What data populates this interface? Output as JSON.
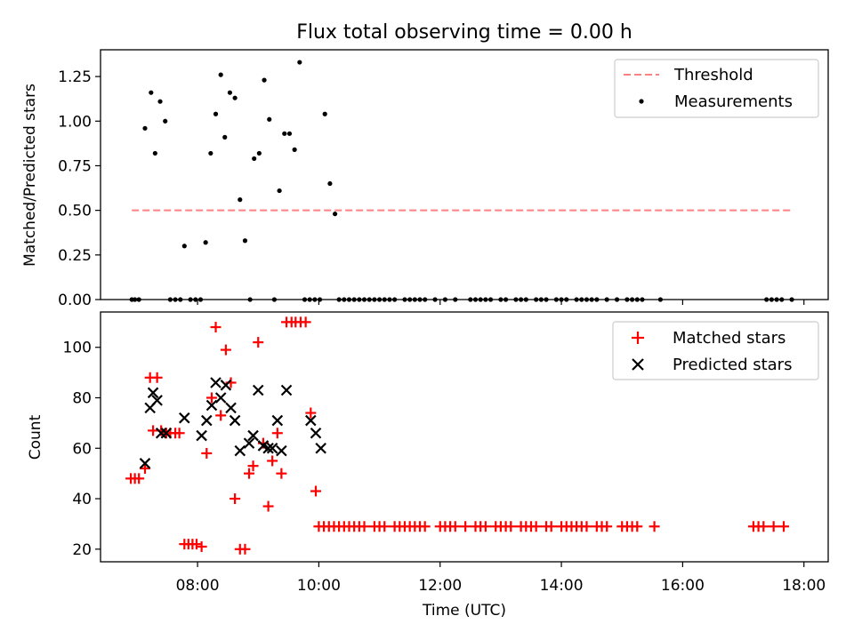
{
  "chart_data": [
    {
      "type": "scatter",
      "title": "Flux total observing time = 0.00 h",
      "xlabel": "",
      "ylabel": "Matched/Predicted stars",
      "xlim": [
        "06:24",
        "18:24"
      ],
      "ylim": [
        0,
        1.4
      ],
      "yticks": [
        0,
        0.25,
        0.5,
        0.75,
        1.0,
        1.25
      ],
      "ytick_labels": [
        "0.00",
        "0.25",
        "0.50",
        "0.75",
        "1.00",
        "1.25"
      ],
      "grid": false,
      "legend": {
        "placement": "top-right",
        "entries": [
          "Threshold",
          "Measurements"
        ]
      },
      "threshold": {
        "name": "Threshold",
        "color": "#ff8080",
        "x_start": "06:55",
        "x_end": "17:50",
        "y": 0.5
      },
      "series": [
        {
          "name": "Measurements",
          "color": "#000000",
          "points": [
            [
              "06:55",
              0
            ],
            [
              "06:58",
              0
            ],
            [
              "07:02",
              0
            ],
            [
              "07:08",
              0.96
            ],
            [
              "07:14",
              1.16
            ],
            [
              "07:18",
              0.82
            ],
            [
              "07:23",
              1.11
            ],
            [
              "07:28",
              1.0
            ],
            [
              "07:33",
              0
            ],
            [
              "07:38",
              0
            ],
            [
              "07:43",
              0
            ],
            [
              "07:47",
              0.3
            ],
            [
              "07:53",
              0
            ],
            [
              "07:58",
              0
            ],
            [
              "08:03",
              0
            ],
            [
              "08:08",
              0.32
            ],
            [
              "08:13",
              0.82
            ],
            [
              "08:18",
              1.04
            ],
            [
              "08:23",
              1.26
            ],
            [
              "08:27",
              0.91
            ],
            [
              "08:32",
              1.16
            ],
            [
              "08:37",
              1.13
            ],
            [
              "08:42",
              0.56
            ],
            [
              "08:47",
              0.33
            ],
            [
              "08:52",
              0
            ],
            [
              "08:56",
              0.79
            ],
            [
              "09:01",
              0.82
            ],
            [
              "09:06",
              1.23
            ],
            [
              "09:11",
              1.01
            ],
            [
              "09:16",
              0
            ],
            [
              "09:21",
              0.61
            ],
            [
              "09:26",
              0.93
            ],
            [
              "09:31",
              0.93
            ],
            [
              "09:36",
              0.84
            ],
            [
              "09:41",
              1.33
            ],
            [
              "09:46",
              0
            ],
            [
              "09:51",
              0
            ],
            [
              "09:56",
              0
            ],
            [
              "10:01",
              0
            ],
            [
              "10:06",
              1.04
            ],
            [
              "10:11",
              0.65
            ],
            [
              "10:16",
              0.48
            ],
            [
              "10:20",
              0
            ],
            [
              "10:25",
              0
            ],
            [
              "10:30",
              0
            ],
            [
              "10:35",
              0
            ],
            [
              "10:40",
              0
            ],
            [
              "10:45",
              0
            ],
            [
              "10:50",
              0
            ],
            [
              "10:55",
              0
            ],
            [
              "11:00",
              0
            ],
            [
              "11:05",
              0
            ],
            [
              "11:10",
              0
            ],
            [
              "11:15",
              0
            ],
            [
              "11:25",
              0
            ],
            [
              "11:30",
              0
            ],
            [
              "11:35",
              0
            ],
            [
              "11:40",
              0
            ],
            [
              "11:45",
              0
            ],
            [
              "11:55",
              0
            ],
            [
              "12:05",
              0
            ],
            [
              "12:15",
              0
            ],
            [
              "12:30",
              0
            ],
            [
              "12:35",
              0
            ],
            [
              "12:40",
              0
            ],
            [
              "12:45",
              0
            ],
            [
              "12:50",
              0
            ],
            [
              "13:00",
              0
            ],
            [
              "13:05",
              0
            ],
            [
              "13:15",
              0
            ],
            [
              "13:20",
              0
            ],
            [
              "13:25",
              0
            ],
            [
              "13:35",
              0
            ],
            [
              "13:40",
              0
            ],
            [
              "13:45",
              0
            ],
            [
              "13:55",
              0
            ],
            [
              "14:00",
              0
            ],
            [
              "14:05",
              0
            ],
            [
              "14:15",
              0
            ],
            [
              "14:20",
              0
            ],
            [
              "14:25",
              0
            ],
            [
              "14:30",
              0
            ],
            [
              "14:35",
              0
            ],
            [
              "14:45",
              0
            ],
            [
              "14:55",
              0
            ],
            [
              "15:05",
              0
            ],
            [
              "15:10",
              0
            ],
            [
              "15:15",
              0
            ],
            [
              "15:20",
              0
            ],
            [
              "15:38",
              0
            ],
            [
              "17:23",
              0
            ],
            [
              "17:28",
              0
            ],
            [
              "17:33",
              0
            ],
            [
              "17:38",
              0
            ],
            [
              "17:48",
              0
            ]
          ]
        }
      ]
    },
    {
      "type": "scatter",
      "title": "",
      "xlabel": "Time (UTC)",
      "ylabel": "Count",
      "xlim": [
        "06:24",
        "18:24"
      ],
      "ylim": [
        15,
        114
      ],
      "xticks": [
        "08:00",
        "10:00",
        "12:00",
        "14:00",
        "16:00",
        "18:00"
      ],
      "yticks": [
        20,
        40,
        60,
        80,
        100
      ],
      "ytick_labels": [
        "20",
        "40",
        "60",
        "80",
        "100"
      ],
      "grid": false,
      "legend": {
        "placement": "top-right",
        "entries": [
          "Matched stars",
          "Predicted stars"
        ]
      },
      "series": [
        {
          "name": "Matched stars",
          "marker": "plus",
          "color": "#ff0000",
          "points": [
            [
              "06:54",
              48
            ],
            [
              "06:58",
              48
            ],
            [
              "07:02",
              48
            ],
            [
              "07:08",
              52
            ],
            [
              "07:13",
              88
            ],
            [
              "07:16",
              67
            ],
            [
              "07:20",
              88
            ],
            [
              "07:24",
              67
            ],
            [
              "07:29",
              66
            ],
            [
              "07:33",
              66
            ],
            [
              "07:38",
              66
            ],
            [
              "07:42",
              66
            ],
            [
              "07:47",
              22
            ],
            [
              "07:51",
              22
            ],
            [
              "07:55",
              22
            ],
            [
              "07:59",
              22
            ],
            [
              "08:04",
              21
            ],
            [
              "08:09",
              58
            ],
            [
              "08:14",
              80
            ],
            [
              "08:18",
              108
            ],
            [
              "08:23",
              73
            ],
            [
              "08:28",
              99
            ],
            [
              "08:33",
              86
            ],
            [
              "08:37",
              40
            ],
            [
              "08:42",
              20
            ],
            [
              "08:47",
              20
            ],
            [
              "08:51",
              50
            ],
            [
              "08:55",
              53
            ],
            [
              "09:00",
              102
            ],
            [
              "09:05",
              62
            ],
            [
              "09:10",
              37
            ],
            [
              "09:14",
              55
            ],
            [
              "09:19",
              66
            ],
            [
              "09:23",
              50
            ],
            [
              "09:28",
              110
            ],
            [
              "09:33",
              110
            ],
            [
              "09:37",
              110
            ],
            [
              "09:42",
              110
            ],
            [
              "09:47",
              110
            ],
            [
              "09:52",
              74
            ],
            [
              "09:57",
              43
            ],
            [
              "10:00",
              29
            ],
            [
              "10:05",
              29
            ],
            [
              "10:10",
              29
            ],
            [
              "10:15",
              29
            ],
            [
              "10:20",
              29
            ],
            [
              "10:25",
              29
            ],
            [
              "10:30",
              29
            ],
            [
              "10:35",
              29
            ],
            [
              "10:40",
              29
            ],
            [
              "10:45",
              29
            ],
            [
              "10:55",
              29
            ],
            [
              "11:00",
              29
            ],
            [
              "11:05",
              29
            ],
            [
              "11:15",
              29
            ],
            [
              "11:20",
              29
            ],
            [
              "11:25",
              29
            ],
            [
              "11:30",
              29
            ],
            [
              "11:35",
              29
            ],
            [
              "11:40",
              29
            ],
            [
              "11:45",
              29
            ],
            [
              "12:00",
              29
            ],
            [
              "12:05",
              29
            ],
            [
              "12:10",
              29
            ],
            [
              "12:15",
              29
            ],
            [
              "12:25",
              29
            ],
            [
              "12:35",
              29
            ],
            [
              "12:40",
              29
            ],
            [
              "12:45",
              29
            ],
            [
              "12:55",
              29
            ],
            [
              "13:00",
              29
            ],
            [
              "13:05",
              29
            ],
            [
              "13:10",
              29
            ],
            [
              "13:20",
              29
            ],
            [
              "13:25",
              29
            ],
            [
              "13:30",
              29
            ],
            [
              "13:35",
              29
            ],
            [
              "13:45",
              29
            ],
            [
              "13:50",
              29
            ],
            [
              "14:00",
              29
            ],
            [
              "14:05",
              29
            ],
            [
              "14:10",
              29
            ],
            [
              "14:15",
              29
            ],
            [
              "14:20",
              29
            ],
            [
              "14:25",
              29
            ],
            [
              "14:35",
              29
            ],
            [
              "14:40",
              29
            ],
            [
              "14:45",
              29
            ],
            [
              "15:00",
              29
            ],
            [
              "15:05",
              29
            ],
            [
              "15:10",
              29
            ],
            [
              "15:15",
              29
            ],
            [
              "15:32",
              29
            ],
            [
              "17:10",
              29
            ],
            [
              "17:15",
              29
            ],
            [
              "17:20",
              29
            ],
            [
              "17:30",
              29
            ],
            [
              "17:40",
              29
            ]
          ]
        },
        {
          "name": "Predicted stars",
          "marker": "x",
          "color": "#000000",
          "points": [
            [
              "07:08",
              54
            ],
            [
              "07:13",
              76
            ],
            [
              "07:16",
              82
            ],
            [
              "07:20",
              79
            ],
            [
              "07:24",
              66
            ],
            [
              "07:29",
              66
            ],
            [
              "07:47",
              72
            ],
            [
              "08:04",
              65
            ],
            [
              "08:09",
              71
            ],
            [
              "08:14",
              77
            ],
            [
              "08:18",
              86
            ],
            [
              "08:23",
              80
            ],
            [
              "08:28",
              85
            ],
            [
              "08:33",
              76
            ],
            [
              "08:37",
              71
            ],
            [
              "08:42",
              59
            ],
            [
              "08:51",
              62
            ],
            [
              "08:55",
              65
            ],
            [
              "09:00",
              83
            ],
            [
              "09:05",
              61
            ],
            [
              "09:10",
              60
            ],
            [
              "09:14",
              60
            ],
            [
              "09:19",
              71
            ],
            [
              "09:23",
              59
            ],
            [
              "09:28",
              83
            ],
            [
              "09:52",
              71
            ],
            [
              "09:57",
              66
            ],
            [
              "10:02",
              60
            ]
          ]
        }
      ]
    }
  ]
}
